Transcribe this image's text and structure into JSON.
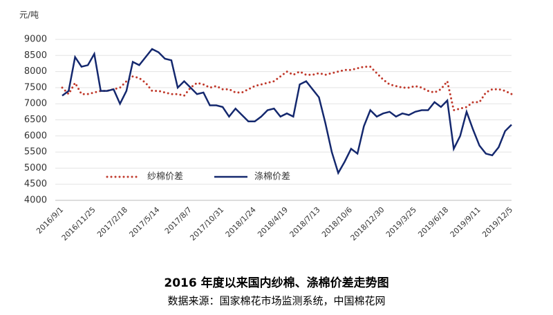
{
  "chart_data": {
    "type": "line",
    "y_label": "元/吨",
    "title": "2016 年度以来国内纱棉、涤棉价差走势图",
    "subtitle": "数据来源：国家棉花市场监测系统，中国棉花网",
    "categories": [
      "2016/9/1",
      null,
      null,
      null,
      null,
      "2016/11/25",
      null,
      null,
      null,
      null,
      "2017/2/18",
      null,
      null,
      null,
      null,
      "2017/5/14",
      null,
      null,
      null,
      null,
      "2017/8/7",
      null,
      null,
      null,
      null,
      "2017/10/31",
      null,
      null,
      null,
      null,
      "2018/1/24",
      null,
      null,
      null,
      null,
      "2018/4/19",
      null,
      null,
      null,
      null,
      "2018/7/13",
      null,
      null,
      null,
      null,
      "2018/10/6",
      null,
      null,
      null,
      null,
      "2018/12/30",
      null,
      null,
      null,
      null,
      "2019/3/25",
      null,
      null,
      null,
      null,
      "2019/6/18",
      null,
      null,
      null,
      null,
      "2019/9/11",
      null,
      null,
      null,
      null,
      "2019/12/5"
    ],
    "series": [
      {
        "name": "纱棉价差",
        "color": "#c0392b",
        "style": "dotted",
        "values": [
          7500,
          7300,
          7650,
          7300,
          7300,
          7350,
          7400,
          7400,
          7450,
          7500,
          7700,
          7850,
          7800,
          7650,
          7400,
          7400,
          7350,
          7300,
          7300,
          7250,
          7500,
          7650,
          7600,
          7500,
          7550,
          7450,
          7450,
          7350,
          7350,
          7450,
          7550,
          7600,
          7650,
          7700,
          7850,
          8000,
          7900,
          8000,
          7900,
          7900,
          7950,
          7900,
          7950,
          8000,
          8050,
          8050,
          8100,
          8150,
          8150,
          7950,
          7750,
          7600,
          7550,
          7500,
          7500,
          7550,
          7500,
          7400,
          7350,
          7450,
          7700,
          6800,
          6850,
          6900,
          7050,
          7050,
          7350,
          7450,
          7450,
          7400,
          7300
        ]
      },
      {
        "name": "涤棉价差",
        "color": "#14286e",
        "style": "solid",
        "values": [
          7250,
          7400,
          8450,
          8150,
          8200,
          8550,
          7400,
          7400,
          7450,
          7000,
          7400,
          8300,
          8200,
          8450,
          8700,
          8600,
          8400,
          8350,
          7500,
          7700,
          7500,
          7300,
          7350,
          6950,
          6950,
          6900,
          6600,
          6850,
          6650,
          6450,
          6450,
          6600,
          6800,
          6850,
          6600,
          6700,
          6600,
          7600,
          7700,
          7450,
          7200,
          6400,
          5500,
          4850,
          5200,
          5600,
          5450,
          6300,
          6800,
          6600,
          6700,
          6750,
          6600,
          6700,
          6650,
          6750,
          6800,
          6800,
          7050,
          6900,
          7100,
          5600,
          6000,
          6750,
          6200,
          5700,
          5450,
          5400,
          5650,
          6150,
          6350
        ]
      }
    ],
    "ylim": [
      4000,
      9000
    ],
    "yticks": [
      4000,
      4500,
      5000,
      5500,
      6000,
      6500,
      7000,
      7500,
      8000,
      8500,
      9000
    ],
    "grid": true,
    "legend": "lower-left"
  }
}
